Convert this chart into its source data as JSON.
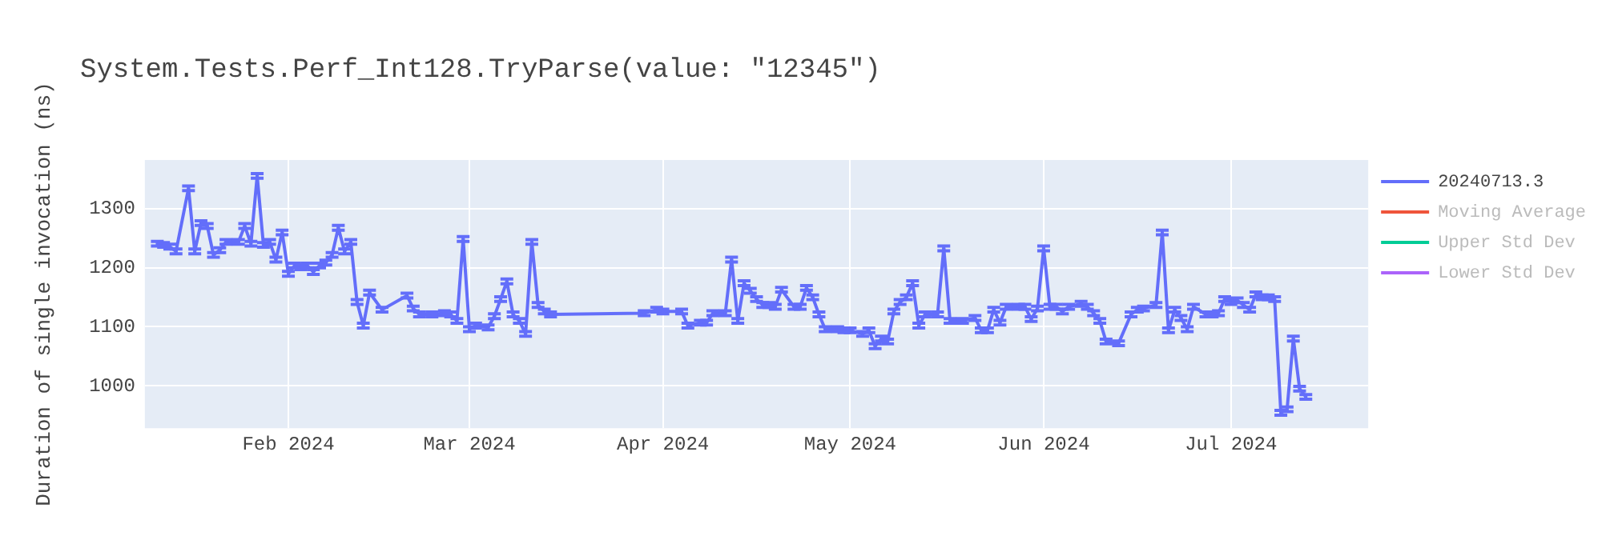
{
  "chart_data": {
    "type": "line",
    "title": "System.Tests.Perf_Int128.TryParse(value: \"12345\")",
    "ylabel": "Duration of single invocation (ns)",
    "xlim": [
      "2024-01-09",
      "2024-07-23"
    ],
    "xticks": [
      {
        "value": "2024-02-01",
        "label": "Feb 2024"
      },
      {
        "value": "2024-03-01",
        "label": "Mar 2024"
      },
      {
        "value": "2024-04-01",
        "label": "Apr 2024"
      },
      {
        "value": "2024-05-01",
        "label": "May 2024"
      },
      {
        "value": "2024-06-01",
        "label": "Jun 2024"
      },
      {
        "value": "2024-07-01",
        "label": "Jul 2024"
      }
    ],
    "ylim": [
      928,
      1383
    ],
    "yticks": [
      1000,
      1100,
      1200,
      1300
    ],
    "grid": true,
    "legend": "top right",
    "line_style": "solid",
    "series": [
      {
        "name": "20240713.3",
        "color": "#636efa",
        "x": [
          "2024-01-11",
          "2024-01-12",
          "2024-01-13",
          "2024-01-14",
          "2024-01-16",
          "2024-01-17",
          "2024-01-18",
          "2024-01-19",
          "2024-01-20",
          "2024-01-21",
          "2024-01-22",
          "2024-01-24",
          "2024-01-25",
          "2024-01-26",
          "2024-01-27",
          "2024-01-28",
          "2024-01-29",
          "2024-01-30",
          "2024-01-31",
          "2024-02-01",
          "2024-02-02",
          "2024-02-03",
          "2024-02-04",
          "2024-02-05",
          "2024-02-06",
          "2024-02-07",
          "2024-02-08",
          "2024-02-09",
          "2024-02-10",
          "2024-02-11",
          "2024-02-12",
          "2024-02-13",
          "2024-02-14",
          "2024-02-16",
          "2024-02-20",
          "2024-02-21",
          "2024-02-22",
          "2024-02-24",
          "2024-02-26",
          "2024-02-27",
          "2024-02-28",
          "2024-02-29",
          "2024-03-01",
          "2024-03-02",
          "2024-03-04",
          "2024-03-05",
          "2024-03-06",
          "2024-03-07",
          "2024-03-08",
          "2024-03-09",
          "2024-03-10",
          "2024-03-11",
          "2024-03-12",
          "2024-03-13",
          "2024-03-14",
          "2024-03-29",
          "2024-03-31",
          "2024-04-01",
          "2024-04-04",
          "2024-04-05",
          "2024-04-07",
          "2024-04-08",
          "2024-04-09",
          "2024-04-11",
          "2024-04-12",
          "2024-04-13",
          "2024-04-14",
          "2024-04-15",
          "2024-04-16",
          "2024-04-17",
          "2024-04-18",
          "2024-04-19",
          "2024-04-20",
          "2024-04-22",
          "2024-04-23",
          "2024-04-24",
          "2024-04-25",
          "2024-04-26",
          "2024-04-27",
          "2024-04-29",
          "2024-04-30",
          "2024-05-01",
          "2024-05-03",
          "2024-05-04",
          "2024-05-05",
          "2024-05-06",
          "2024-05-07",
          "2024-05-08",
          "2024-05-09",
          "2024-05-10",
          "2024-05-11",
          "2024-05-12",
          "2024-05-13",
          "2024-05-15",
          "2024-05-16",
          "2024-05-17",
          "2024-05-19",
          "2024-05-21",
          "2024-05-22",
          "2024-05-23",
          "2024-05-24",
          "2024-05-25",
          "2024-05-26",
          "2024-05-28",
          "2024-05-29",
          "2024-05-30",
          "2024-05-31",
          "2024-06-01",
          "2024-06-02",
          "2024-06-03",
          "2024-06-04",
          "2024-06-05",
          "2024-06-07",
          "2024-06-08",
          "2024-06-09",
          "2024-06-10",
          "2024-06-11",
          "2024-06-13",
          "2024-06-15",
          "2024-06-16",
          "2024-06-17",
          "2024-06-19",
          "2024-06-20",
          "2024-06-21",
          "2024-06-22",
          "2024-06-23",
          "2024-06-24",
          "2024-06-25",
          "2024-06-27",
          "2024-06-28",
          "2024-06-29",
          "2024-06-30",
          "2024-07-01",
          "2024-07-02",
          "2024-07-03",
          "2024-07-04",
          "2024-07-05",
          "2024-07-06",
          "2024-07-07",
          "2024-07-08",
          "2024-07-09",
          "2024-07-10",
          "2024-07-11",
          "2024-07-12",
          "2024-07-13"
        ],
        "values": [
          1241,
          1239,
          1236,
          1228,
          1335,
          1228,
          1276,
          1271,
          1222,
          1230,
          1244,
          1244,
          1271,
          1241,
          1356,
          1239,
          1244,
          1214,
          1260,
          1190,
          1204,
          1201,
          1204,
          1193,
          1204,
          1209,
          1222,
          1268,
          1228,
          1244,
          1142,
          1102,
          1158,
          1129,
          1153,
          1131,
          1121,
          1121,
          1123,
          1121,
          1110,
          1249,
          1096,
          1102,
          1099,
          1118,
          1147,
          1177,
          1121,
          1110,
          1088,
          1244,
          1137,
          1126,
          1121,
          1123,
          1129,
          1126,
          1126,
          1102,
          1107,
          1107,
          1123,
          1123,
          1214,
          1110,
          1174,
          1161,
          1147,
          1137,
          1137,
          1134,
          1163,
          1134,
          1134,
          1166,
          1150,
          1121,
          1096,
          1096,
          1094,
          1094,
          1088,
          1094,
          1067,
          1080,
          1075,
          1126,
          1142,
          1150,
          1174,
          1102,
          1121,
          1121,
          1233,
          1110,
          1110,
          1115,
          1094,
          1094,
          1129,
          1107,
          1134,
          1134,
          1134,
          1113,
          1131,
          1233,
          1134,
          1134,
          1126,
          1134,
          1139,
          1134,
          1123,
          1110,
          1075,
          1072,
          1121,
          1129,
          1131,
          1137,
          1260,
          1094,
          1129,
          1115,
          1096,
          1134,
          1121,
          1121,
          1123,
          1147,
          1142,
          1145,
          1137,
          1129,
          1155,
          1150,
          1150,
          1147,
          954,
          960,
          1080,
          995,
          981
        ],
        "errors": [
          4,
          4,
          4,
          4,
          4,
          4,
          4,
          4,
          4,
          4,
          4,
          4,
          4,
          4,
          4,
          4,
          4,
          4,
          4,
          4,
          4,
          4,
          4,
          4,
          4,
          4,
          4,
          4,
          4,
          4,
          4,
          4,
          4,
          4,
          4,
          4,
          4,
          4,
          4,
          4,
          4,
          4,
          4,
          4,
          4,
          4,
          4,
          4,
          4,
          4,
          4,
          4,
          4,
          4,
          4,
          4,
          4,
          4,
          4,
          4,
          4,
          4,
          4,
          4,
          4,
          4,
          4,
          4,
          4,
          4,
          4,
          4,
          4,
          4,
          4,
          4,
          4,
          4,
          4,
          4,
          4,
          4,
          4,
          4,
          4,
          4,
          4,
          4,
          4,
          4,
          4,
          4,
          4,
          4,
          4,
          4,
          4,
          4,
          4,
          4,
          4,
          4,
          4,
          4,
          4,
          4,
          4,
          4,
          4,
          4,
          4,
          4,
          4,
          4,
          4,
          4,
          4,
          4,
          4,
          4,
          4,
          4,
          4,
          4,
          4,
          4,
          4,
          4,
          4,
          4,
          4,
          4,
          4,
          4,
          4,
          4,
          4,
          4,
          4,
          4,
          4,
          4,
          4,
          4,
          4
        ]
      },
      {
        "name": "Moving Average",
        "color": "#ef553b"
      },
      {
        "name": "Upper Std Dev",
        "color": "#00cc96"
      },
      {
        "name": "Lower Std Dev",
        "color": "#ab63fa"
      }
    ]
  }
}
